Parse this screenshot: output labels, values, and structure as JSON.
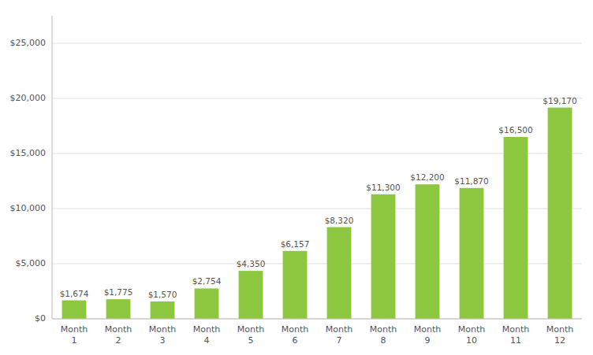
{
  "chart_data": {
    "type": "bar",
    "categories": [
      "Month\n1",
      "Month\n2",
      "Month\n3",
      "Month\n4",
      "Month\n5",
      "Month\n6",
      "Month\n7",
      "Month\n8",
      "Month\n9",
      "Month\n10",
      "Month\n11",
      "Month\n12"
    ],
    "values": [
      1674,
      1775,
      1570,
      2754,
      4350,
      6157,
      8320,
      11300,
      12200,
      11870,
      16500,
      19170
    ],
    "value_labels": [
      "$1,674",
      "$1,775",
      "$1,570",
      "$2,754",
      "$4,350",
      "$6,157",
      "$8,320",
      "$11,300",
      "$12,200",
      "$11,870",
      "$16,500",
      "$19,170"
    ],
    "color": "#8dc63f",
    "ylim": [
      0,
      27500
    ],
    "yticks": [
      {
        "value": 0,
        "label": "$0"
      },
      {
        "value": 5000,
        "label": "$5,000"
      },
      {
        "value": 10000,
        "label": "$10,000"
      },
      {
        "value": 15000,
        "label": "$15,000"
      },
      {
        "value": 20000,
        "label": "$20,000"
      },
      {
        "value": 25000,
        "label": "$25,000"
      }
    ],
    "grid": true,
    "data_labels": true
  }
}
